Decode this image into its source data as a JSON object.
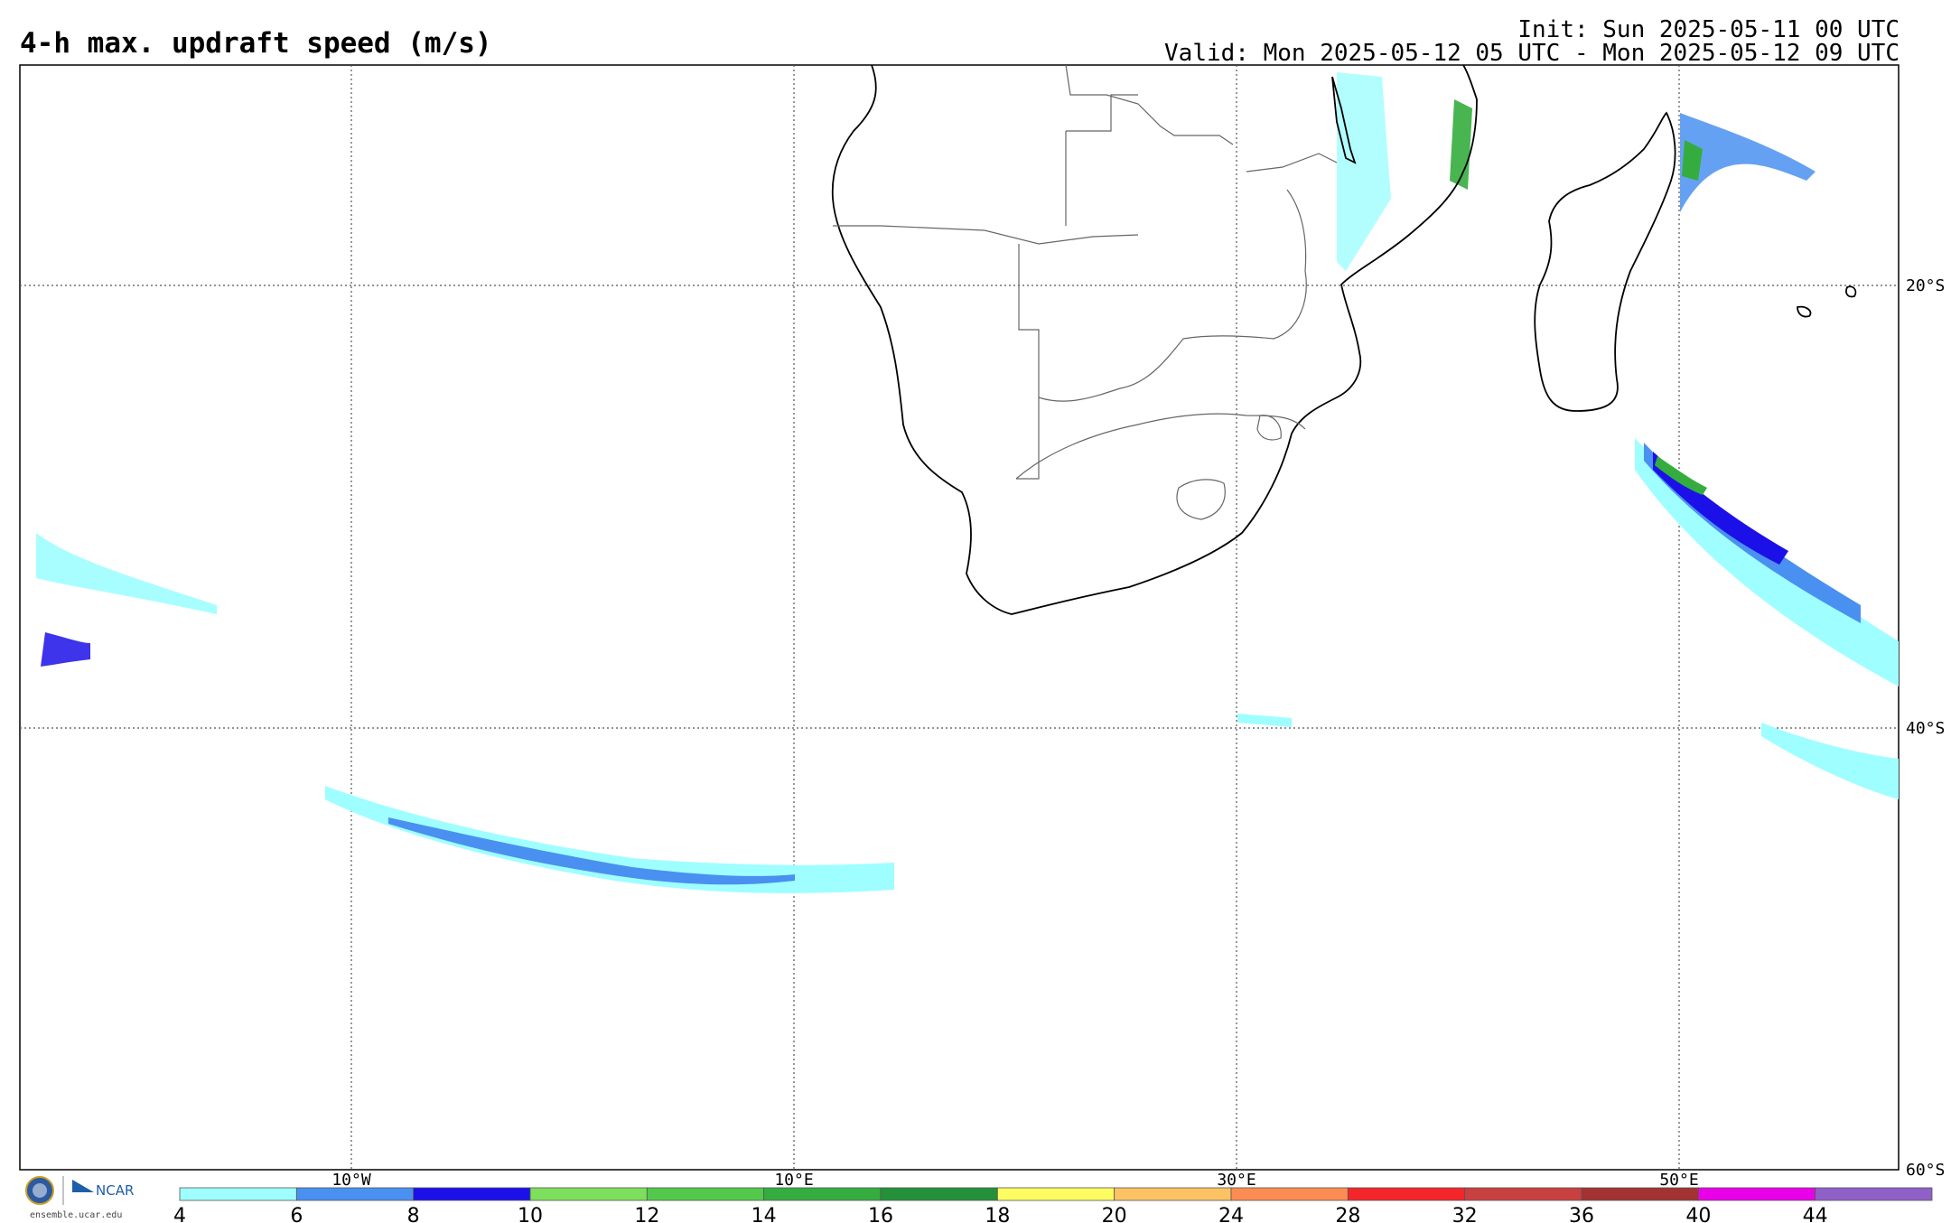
{
  "header": {
    "title": "4-h max. updraft speed (m/s)",
    "init": "Init: Sun 2025-05-11 00 UTC",
    "valid": "Valid: Mon 2025-05-12 05 UTC - Mon 2025-05-12 09 UTC"
  },
  "map": {
    "lon_labels": [
      "10°W",
      "10°E",
      "30°E",
      "50°E"
    ],
    "lat_labels": [
      "20°S",
      "40°S",
      "60°S"
    ],
    "grid_lines": "dotted"
  },
  "colorbar": {
    "ticks": [
      "4",
      "6",
      "8",
      "10",
      "12",
      "14",
      "16",
      "18",
      "20",
      "24",
      "28",
      "32",
      "36",
      "40",
      "44"
    ],
    "colors": [
      "#9ffeff",
      "#4a90f0",
      "#1c10e8",
      "#7ddf5c",
      "#53c94b",
      "#35ad3e",
      "#23913a",
      "#fdfd62",
      "#fdc264",
      "#fb8c52",
      "#f4262a",
      "#c94040",
      "#a33232",
      "#ea00e8",
      "#9060c8"
    ]
  },
  "branding": {
    "org": "NCAR",
    "url": "ensemble.ucar.edu"
  }
}
